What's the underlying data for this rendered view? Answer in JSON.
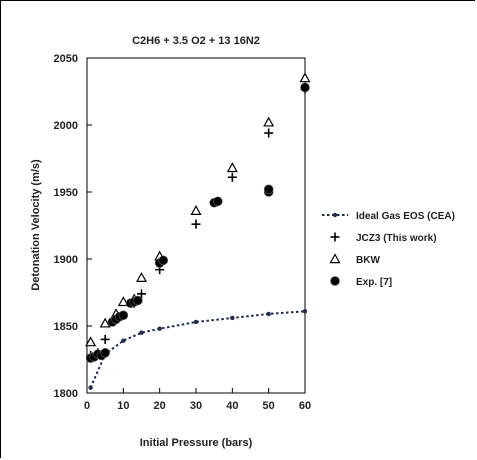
{
  "chart_data": {
    "type": "scatter",
    "title": "C2H6 + 3.5 O2 + 13 16N2",
    "xlabel": "Initial Pressure (bars)",
    "ylabel": "Detonation Velocity (m/s)",
    "xlim": [
      0,
      60
    ],
    "ylim": [
      1800,
      2050
    ],
    "xticks": [
      0,
      10,
      20,
      30,
      40,
      50,
      60
    ],
    "yticks": [
      1800,
      1850,
      1900,
      1950,
      2000,
      2050
    ],
    "grid": false,
    "legend_position": "right",
    "series": [
      {
        "name": "Ideal Gas EOS (CEA)",
        "style": "dotted-line-with-dots",
        "color": "#1f2d4d",
        "x": [
          1,
          5,
          10,
          15,
          20,
          30,
          40,
          50,
          60
        ],
        "y": [
          1804,
          1829,
          1839,
          1845,
          1848,
          1853,
          1856,
          1859,
          1861
        ]
      },
      {
        "name": "JCZ3 (This work)",
        "style": "plus",
        "color": "#000000",
        "x": [
          1,
          3,
          5,
          8,
          10,
          13,
          15,
          20,
          30,
          40,
          50,
          60
        ],
        "y": [
          1828,
          1830,
          1840,
          1855,
          1858,
          1867,
          1874,
          1892,
          1926,
          1961,
          1994,
          2027
        ]
      },
      {
        "name": "BKW",
        "style": "triangle-open",
        "color": "#000000",
        "x": [
          1,
          5,
          8,
          10,
          13,
          15,
          20,
          30,
          40,
          50,
          60
        ],
        "y": [
          1838,
          1852,
          1859,
          1868,
          1870,
          1886,
          1902,
          1936,
          1968,
          2002,
          2035
        ]
      },
      {
        "name": "Exp. [7]",
        "style": "filled-circle",
        "color": "#000000",
        "x": [
          1,
          2,
          3,
          4,
          5,
          7,
          8,
          9,
          10,
          12,
          13,
          14,
          20,
          21,
          35,
          36,
          50,
          50,
          60
        ],
        "y": [
          1826,
          1827,
          1829,
          1828,
          1830,
          1853,
          1855,
          1857,
          1858,
          1867,
          1868,
          1869,
          1897,
          1899,
          1942,
          1943,
          1950,
          1952,
          2028
        ]
      }
    ]
  }
}
